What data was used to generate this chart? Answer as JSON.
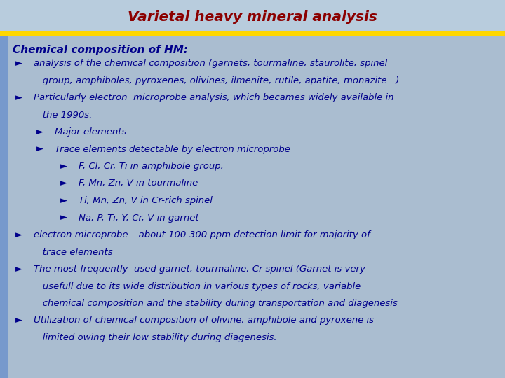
{
  "title": "Varietal heavy mineral analysis",
  "title_color": "#8B0000",
  "title_fontsize": 14.5,
  "header_line_color": "#FFD700",
  "bg_color": "#AABDD0",
  "title_bg_color": "#B8CCDD",
  "text_color": "#00008B",
  "subtitle": "Chemical composition of HM:",
  "subtitle_fontsize": 11,
  "content_fontsize": 9.5,
  "left_bar_color": "#7799CC",
  "lines": [
    {
      "level": 0,
      "bullet": true,
      "text": "analysis of the chemical composition (garnets, tourmaline, staurolite, spinel"
    },
    {
      "level": 0,
      "bullet": false,
      "text": "   group, amphiboles, pyroxenes, olivines, ilmenite, rutile, apatite, monazite...)"
    },
    {
      "level": 0,
      "bullet": true,
      "text": "Particularly electron  microprobe analysis, which becames widely available in"
    },
    {
      "level": 0,
      "bullet": false,
      "text": "   the 1990s."
    },
    {
      "level": 1,
      "bullet": true,
      "text": "Major elements"
    },
    {
      "level": 1,
      "bullet": true,
      "text": "Trace elements detectable by electron microprobe"
    },
    {
      "level": 2,
      "bullet": true,
      "text": "F, Cl, Cr, Ti in amphibole group,"
    },
    {
      "level": 2,
      "bullet": true,
      "text": "F, Mn, Zn, V in tourmaline"
    },
    {
      "level": 2,
      "bullet": true,
      "text": "Ti, Mn, Zn, V in Cr-rich spinel"
    },
    {
      "level": 2,
      "bullet": true,
      "text": "Na, P, Ti, Y, Cr, V in garnet"
    },
    {
      "level": 0,
      "bullet": true,
      "text": "electron microprobe – about 100-300 ppm detection limit for majority of"
    },
    {
      "level": 0,
      "bullet": false,
      "text": "   trace elements"
    },
    {
      "level": 0,
      "bullet": true,
      "text": "The most frequently  used garnet, tourmaline, Cr-spinel (Garnet is very"
    },
    {
      "level": 0,
      "bullet": false,
      "text": "   usefull due to its wide distribution in various types of rocks, variable"
    },
    {
      "level": 0,
      "bullet": false,
      "text": "   chemical composition and the stability during transportation and diagenesis"
    },
    {
      "level": 0,
      "bullet": true,
      "text": "Utilization of chemical composition of olivine, amphibole and pyroxene is"
    },
    {
      "level": 0,
      "bullet": false,
      "text": "   limited owing their low stability during diagenesis."
    }
  ]
}
